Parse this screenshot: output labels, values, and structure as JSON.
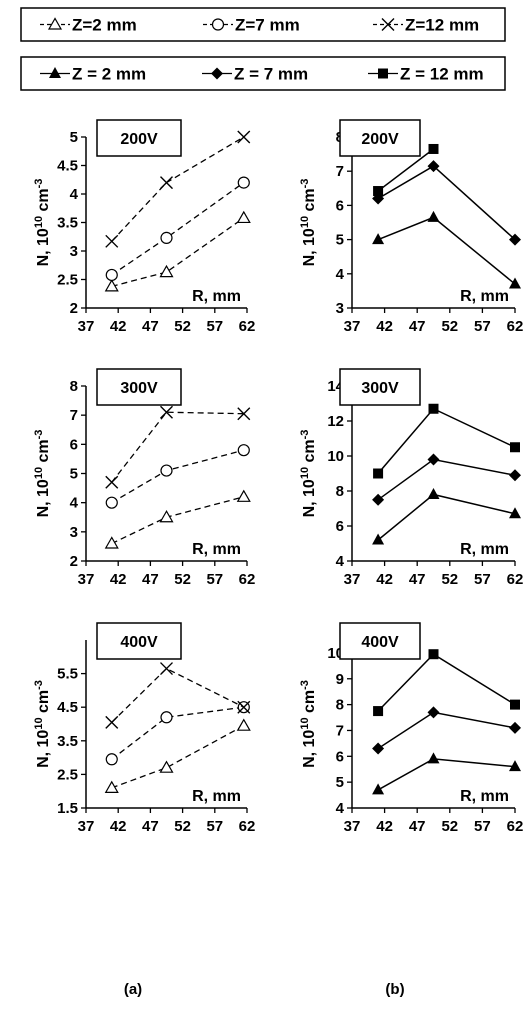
{
  "legends": [
    {
      "style": "dashed",
      "entries": [
        {
          "label": "Z=2 mm",
          "marker": "triangle-open"
        },
        {
          "label": "Z=7 mm",
          "marker": "circle-open"
        },
        {
          "label": "Z=12 mm",
          "marker": "cross"
        }
      ]
    },
    {
      "style": "solid",
      "entries": [
        {
          "label": "Z = 2 mm",
          "marker": "triangle-filled"
        },
        {
          "label": "Z = 7 mm",
          "marker": "diamond-filled"
        },
        {
          "label": "Z = 12 mm",
          "marker": "square-filled"
        }
      ]
    }
  ],
  "figure_labels": {
    "a": "(a)",
    "b": "(b)"
  },
  "chart_data": [
    {
      "type": "line",
      "column": "a",
      "row": 0,
      "title": "200V",
      "xlabel": "R, mm",
      "ylabel": "N, 10",
      "ylabel_exp": "10",
      "ylabel_unit": " cm",
      "ylabel_unit_exp": "-3",
      "xlim": [
        37,
        62
      ],
      "xticks": [
        37,
        42,
        47,
        52,
        57,
        62
      ],
      "ylim": [
        2,
        5
      ],
      "yticks": [
        "2",
        "2.5",
        "3",
        "3.5",
        "4",
        "4.5",
        "5"
      ],
      "x": [
        41,
        49.5,
        61.5
      ],
      "series": [
        {
          "marker": "triangle-open",
          "values": [
            2.38,
            2.63,
            3.58
          ]
        },
        {
          "marker": "circle-open",
          "values": [
            2.58,
            3.23,
            4.2
          ]
        },
        {
          "marker": "cross",
          "values": [
            3.17,
            4.2,
            5.0
          ]
        }
      ]
    },
    {
      "type": "line",
      "column": "b",
      "row": 0,
      "title": "200V",
      "xlabel": "R, mm",
      "ylabel": "N, 10",
      "ylabel_exp": "10",
      "ylabel_unit": " cm",
      "ylabel_unit_exp": "-3",
      "xlim": [
        37,
        62
      ],
      "xticks": [
        37,
        42,
        47,
        52,
        57,
        62
      ],
      "ylim": [
        3,
        8
      ],
      "yticks": [
        "3",
        "4",
        "5",
        "6",
        "7",
        "8"
      ],
      "x": [
        41,
        49.5,
        62
      ],
      "series": [
        {
          "marker": "triangle-filled",
          "values": [
            5.0,
            5.65,
            3.7
          ]
        },
        {
          "marker": "diamond-filled",
          "values": [
            6.2,
            7.15,
            5.0
          ]
        },
        {
          "marker": "square-filled",
          "values": [
            6.42,
            7.65,
            null
          ]
        }
      ]
    },
    {
      "type": "line",
      "column": "a",
      "row": 1,
      "title": "300V",
      "xlabel": "R, mm",
      "ylabel": "N, 10",
      "ylabel_exp": "10",
      "ylabel_unit": " cm",
      "ylabel_unit_exp": "-3",
      "xlim": [
        37,
        62
      ],
      "xticks": [
        37,
        42,
        47,
        52,
        57,
        62
      ],
      "ylim": [
        2,
        8
      ],
      "yticks": [
        "2",
        "3",
        "4",
        "5",
        "6",
        "7",
        "8"
      ],
      "x": [
        41,
        49.5,
        61.5
      ],
      "series": [
        {
          "marker": "triangle-open",
          "values": [
            2.6,
            3.5,
            4.2
          ]
        },
        {
          "marker": "circle-open",
          "values": [
            4.0,
            5.1,
            5.8
          ]
        },
        {
          "marker": "cross",
          "values": [
            4.7,
            7.1,
            7.05
          ]
        }
      ]
    },
    {
      "type": "line",
      "column": "b",
      "row": 1,
      "title": "300V",
      "xlabel": "R, mm",
      "ylabel": "N, 10",
      "ylabel_exp": "10",
      "ylabel_unit": " cm",
      "ylabel_unit_exp": "-3",
      "xlim": [
        37,
        62
      ],
      "xticks": [
        37,
        42,
        47,
        52,
        57,
        62
      ],
      "ylim": [
        4,
        14
      ],
      "yticks": [
        "4",
        "6",
        "8",
        "10",
        "12",
        "14"
      ],
      "x": [
        41,
        49.5,
        62
      ],
      "series": [
        {
          "marker": "triangle-filled",
          "values": [
            5.2,
            7.8,
            6.7
          ]
        },
        {
          "marker": "diamond-filled",
          "values": [
            7.5,
            9.8,
            8.9
          ]
        },
        {
          "marker": "square-filled",
          "values": [
            9.0,
            12.7,
            10.5
          ]
        }
      ]
    },
    {
      "type": "line",
      "column": "a",
      "row": 2,
      "title": "400V",
      "xlabel": "R, mm",
      "ylabel": "N, 10",
      "ylabel_exp": "10",
      "ylabel_unit": " cm",
      "ylabel_unit_exp": "-3",
      "xlim": [
        37,
        62
      ],
      "xticks": [
        37,
        42,
        47,
        52,
        57,
        62
      ],
      "ylim": [
        1.5,
        6.5
      ],
      "yticks": [
        "1.5",
        "2.5",
        "3.5",
        "4.5",
        "5.5"
      ],
      "x": [
        41,
        49.5,
        61.5
      ],
      "series": [
        {
          "marker": "triangle-open",
          "values": [
            2.1,
            2.7,
            3.95
          ]
        },
        {
          "marker": "circle-open",
          "values": [
            2.95,
            4.2,
            4.5
          ]
        },
        {
          "marker": "cross",
          "values": [
            4.05,
            5.65,
            4.5
          ]
        }
      ]
    },
    {
      "type": "line",
      "column": "b",
      "row": 2,
      "title": "400V",
      "xlabel": "R, mm",
      "ylabel": "N, 10",
      "ylabel_exp": "10",
      "ylabel_unit": " cm",
      "ylabel_unit_exp": "-3",
      "xlim": [
        37,
        62
      ],
      "xticks": [
        37,
        42,
        47,
        52,
        57,
        62
      ],
      "ylim": [
        4,
        10.5
      ],
      "yticks": [
        "4",
        "5",
        "6",
        "7",
        "8",
        "9",
        "10"
      ],
      "x": [
        41,
        49.5,
        62
      ],
      "series": [
        {
          "marker": "triangle-filled",
          "values": [
            4.7,
            5.9,
            5.6
          ]
        },
        {
          "marker": "diamond-filled",
          "values": [
            6.3,
            7.7,
            7.1
          ]
        },
        {
          "marker": "square-filled",
          "values": [
            7.75,
            9.95,
            8.0
          ]
        }
      ]
    }
  ]
}
